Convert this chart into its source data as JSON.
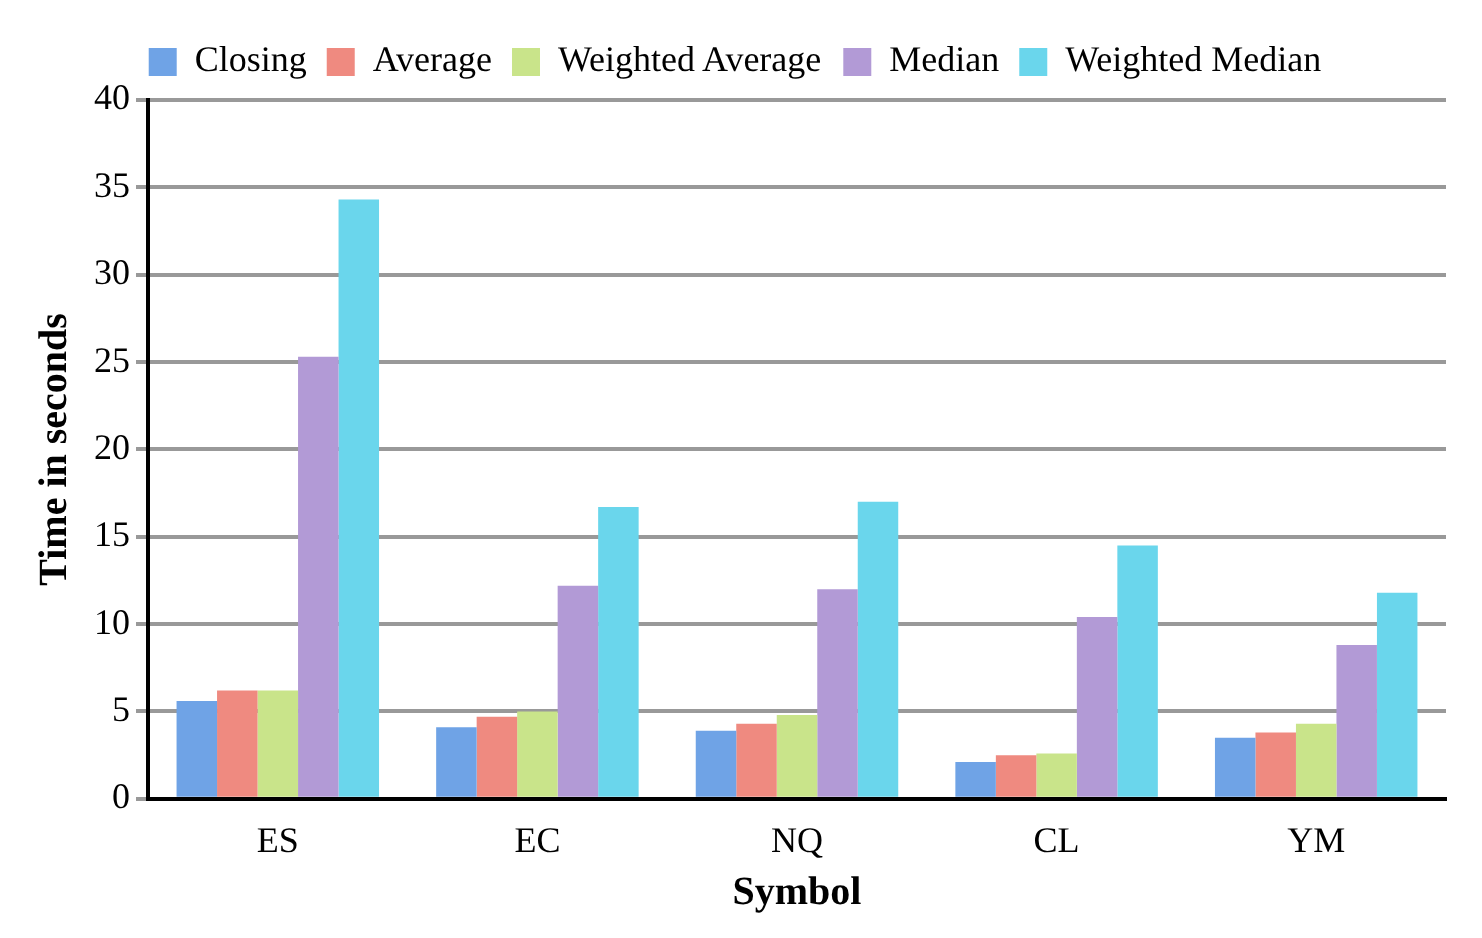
{
  "chart_data": {
    "type": "bar",
    "xlabel": "Symbol",
    "ylabel": "Time in seconds",
    "categories": [
      "ES",
      "EC",
      "NQ",
      "CL",
      "YM"
    ],
    "series": [
      {
        "name": "Closing",
        "color": "#6fa3e6",
        "values": [
          5.6,
          4.1,
          3.9,
          2.1,
          3.5
        ]
      },
      {
        "name": "Average",
        "color": "#ef8a80",
        "values": [
          6.2,
          4.7,
          4.3,
          2.5,
          3.8
        ]
      },
      {
        "name": "Weighted Average",
        "color": "#c9e48a",
        "values": [
          6.2,
          5.0,
          4.8,
          2.6,
          4.3
        ]
      },
      {
        "name": "Median",
        "color": "#b29ad6",
        "values": [
          25.3,
          12.2,
          12.0,
          10.4,
          8.8
        ]
      },
      {
        "name": "Weighted Median",
        "color": "#6ad6ec",
        "values": [
          34.3,
          16.7,
          17.0,
          14.5,
          11.8
        ]
      }
    ],
    "ylim": [
      0,
      40
    ],
    "yticks": [
      0,
      5,
      10,
      15,
      20,
      25,
      30,
      35,
      40
    ],
    "grid": "y",
    "legend": "top"
  }
}
